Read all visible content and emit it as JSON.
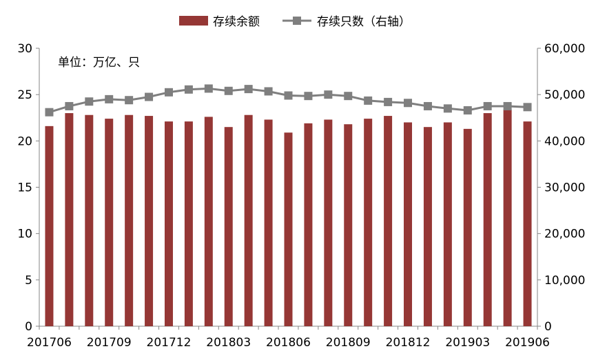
{
  "chart_data": {
    "type": "bar",
    "legend": {
      "placement": "top",
      "items": [
        {
          "label": "存续余额",
          "color": "#953735",
          "marker": "bar"
        },
        {
          "label": "存续只数（右轴）",
          "color": "#7f7f7f",
          "marker": "line-square"
        }
      ]
    },
    "unit_note": "单位：万亿、只",
    "categories": [
      "201706",
      "201707",
      "201708",
      "201709",
      "201710",
      "201711",
      "201712",
      "201801",
      "201802",
      "201803",
      "201804",
      "201805",
      "201806",
      "201807",
      "201808",
      "201809",
      "201810",
      "201811",
      "201812",
      "201901",
      "201902",
      "201903",
      "201904",
      "201905",
      "201906"
    ],
    "series": [
      {
        "name": "存续余额",
        "kind": "bar",
        "axis": "left",
        "color": "#953735",
        "values": [
          21.6,
          23.0,
          22.8,
          22.4,
          22.8,
          22.7,
          22.1,
          22.1,
          22.6,
          21.5,
          22.8,
          22.3,
          20.9,
          21.9,
          22.3,
          21.8,
          22.4,
          22.7,
          22.0,
          21.5,
          22.0,
          21.3,
          23.0,
          23.4,
          22.1
        ]
      },
      {
        "name": "存续只数（右轴）",
        "kind": "line",
        "axis": "right",
        "color": "#7f7f7f",
        "values": [
          46200,
          47500,
          48500,
          49000,
          48800,
          49500,
          50500,
          51100,
          51300,
          50800,
          51200,
          50700,
          49800,
          49700,
          50000,
          49700,
          48700,
          48400,
          48200,
          47500,
          47000,
          46600,
          47500,
          47500,
          47300
        ]
      }
    ],
    "x_tick_labels": [
      "201706",
      "201709",
      "201712",
      "201803",
      "201806",
      "201809",
      "201812",
      "201903",
      "201906"
    ],
    "y_left": {
      "min": 0,
      "max": 30,
      "ticks": [
        "0",
        "5",
        "10",
        "15",
        "20",
        "25",
        "30"
      ]
    },
    "y_right": {
      "min": 0,
      "max": 60000,
      "ticks": [
        "0",
        "10,000",
        "20,000",
        "30,000",
        "40,000",
        "50,000",
        "60,000"
      ]
    },
    "grid": false
  }
}
